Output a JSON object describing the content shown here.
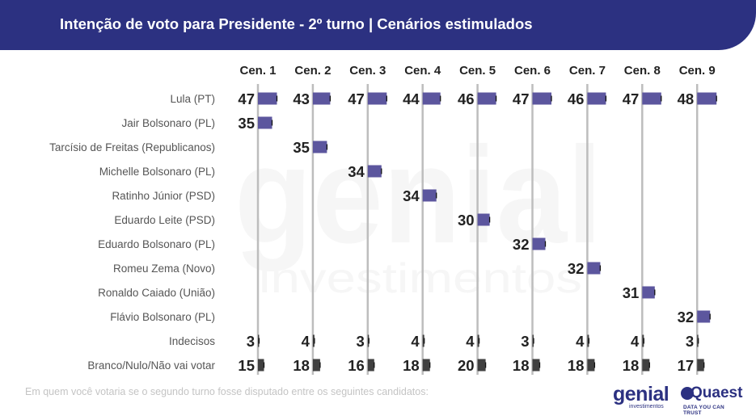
{
  "header": {
    "title": "Intenção de voto para Presidente - 2º turno | Cenários estimulados"
  },
  "footnote": "Em quem você votaria se o segundo turno fosse disputado entre os seguintes candidatos:",
  "logos": {
    "genial_word": "genial",
    "genial_sub": "investimentos",
    "quaest_word": "Quaest",
    "quaest_sub": "DATA YOU CAN TRUST"
  },
  "watermark": {
    "word": "genial",
    "sub": "investimentos"
  },
  "colors": {
    "header_bg": "#2c3181",
    "candidate_bar": "#5c569e",
    "other_bar": "#404040",
    "divider": "#bdbdbd",
    "value_text": "#222222",
    "row_label": "#555555"
  },
  "chart_data": {
    "type": "bar",
    "title": "Intenção de voto para Presidente - 2º turno | Cenários estimulados",
    "categories": [
      "Cen. 1",
      "Cen. 2",
      "Cen. 3",
      "Cen. 4",
      "Cen. 5",
      "Cen. 6",
      "Cen. 7",
      "Cen. 8",
      "Cen. 9"
    ],
    "rows": [
      {
        "label": "Lula (PT)",
        "kind": "candidate",
        "values": [
          47,
          43,
          47,
          44,
          46,
          47,
          46,
          47,
          48
        ]
      },
      {
        "label": "Jair Bolsonaro (PL)",
        "kind": "candidate",
        "values": [
          35,
          null,
          null,
          null,
          null,
          null,
          null,
          null,
          null
        ]
      },
      {
        "label": "Tarcísio de Freitas (Republicanos)",
        "kind": "candidate",
        "values": [
          null,
          35,
          null,
          null,
          null,
          null,
          null,
          null,
          null
        ]
      },
      {
        "label": "Michelle Bolsonaro (PL)",
        "kind": "candidate",
        "values": [
          null,
          null,
          34,
          null,
          null,
          null,
          null,
          null,
          null
        ]
      },
      {
        "label": "Ratinho Júnior (PSD)",
        "kind": "candidate",
        "values": [
          null,
          null,
          null,
          34,
          null,
          null,
          null,
          null,
          null
        ]
      },
      {
        "label": "Eduardo Leite (PSD)",
        "kind": "candidate",
        "values": [
          null,
          null,
          null,
          null,
          30,
          null,
          null,
          null,
          null
        ]
      },
      {
        "label": "Eduardo Bolsonaro (PL)",
        "kind": "candidate",
        "values": [
          null,
          null,
          null,
          null,
          null,
          32,
          null,
          null,
          null
        ]
      },
      {
        "label": "Romeu Zema (Novo)",
        "kind": "candidate",
        "values": [
          null,
          null,
          null,
          null,
          null,
          null,
          32,
          null,
          null
        ]
      },
      {
        "label": "Ronaldo Caiado (União)",
        "kind": "candidate",
        "values": [
          null,
          null,
          null,
          null,
          null,
          null,
          null,
          31,
          null
        ]
      },
      {
        "label": "Flávio Bolsonaro (PL)",
        "kind": "candidate",
        "values": [
          null,
          null,
          null,
          null,
          null,
          null,
          null,
          null,
          32
        ]
      },
      {
        "label": "Indecisos",
        "kind": "other",
        "values": [
          3,
          4,
          3,
          4,
          4,
          3,
          4,
          4,
          3
        ]
      },
      {
        "label": "Branco/Nulo/Não vai votar",
        "kind": "other",
        "values": [
          15,
          18,
          16,
          18,
          20,
          18,
          18,
          18,
          17
        ]
      }
    ]
  }
}
